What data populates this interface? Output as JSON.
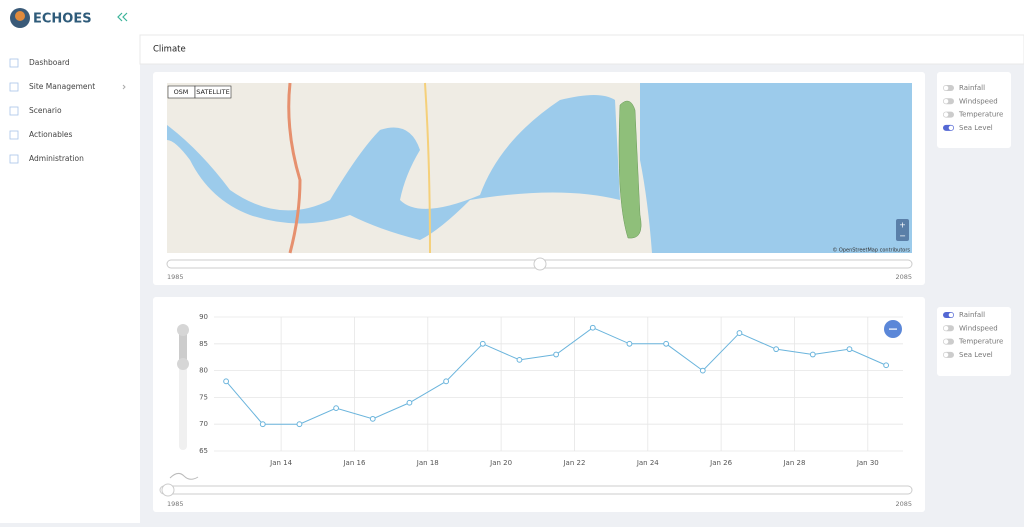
{
  "brand": "ECHOES",
  "nav": [
    "Dashboard",
    "Site Management",
    "Scenario",
    "Actionables",
    "Administration"
  ],
  "page_title": "Climate",
  "map": {
    "buttons": [
      "OSM",
      "SATELLITE"
    ],
    "zoom": [
      "+",
      "−"
    ],
    "attribution": "© OpenStreetMap contributors",
    "range": [
      "1985",
      "2085"
    ]
  },
  "map_layers": [
    {
      "label": "Rainfall",
      "on": false
    },
    {
      "label": "Windspeed",
      "on": false
    },
    {
      "label": "Temperature",
      "on": false
    },
    {
      "label": "Sea Level",
      "on": true
    }
  ],
  "chart_layers": [
    {
      "label": "Rainfall",
      "on": true
    },
    {
      "label": "Windspeed",
      "on": false
    },
    {
      "label": "Temperature",
      "on": false
    },
    {
      "label": "Sea Level",
      "on": false
    }
  ],
  "chart_data": {
    "type": "line",
    "color": "#6ab4dc",
    "x": [
      12.5,
      13.5,
      14.5,
      15.5,
      16.5,
      17.5,
      18.5,
      19.5,
      20.5,
      21.5,
      22.5,
      23.5,
      24.5,
      25.5,
      26.5,
      27.5,
      28.5,
      29.5,
      30.5
    ],
    "values": [
      78,
      70,
      70,
      73,
      71,
      74,
      78,
      85,
      82,
      83,
      88,
      85,
      85,
      80,
      87,
      84,
      83,
      84,
      81
    ],
    "xlim": [
      12.17,
      30.96
    ],
    "ylim": [
      65,
      90
    ],
    "xticks": [
      {
        "value": 14,
        "label": "Jan 14"
      },
      {
        "value": 16,
        "label": "Jan 16"
      },
      {
        "value": 18,
        "label": "Jan 18"
      },
      {
        "value": 20,
        "label": "Jan 20"
      },
      {
        "value": 22,
        "label": "Jan 22"
      },
      {
        "value": 24,
        "label": "Jan 24"
      },
      {
        "value": 26,
        "label": "Jan 26"
      },
      {
        "value": 28,
        "label": "Jan 28"
      },
      {
        "value": 30,
        "label": "Jan 30"
      }
    ],
    "yticks": [
      65,
      70,
      75,
      80,
      85,
      90
    ],
    "grid": true,
    "range": [
      "1985",
      "2085"
    ]
  }
}
